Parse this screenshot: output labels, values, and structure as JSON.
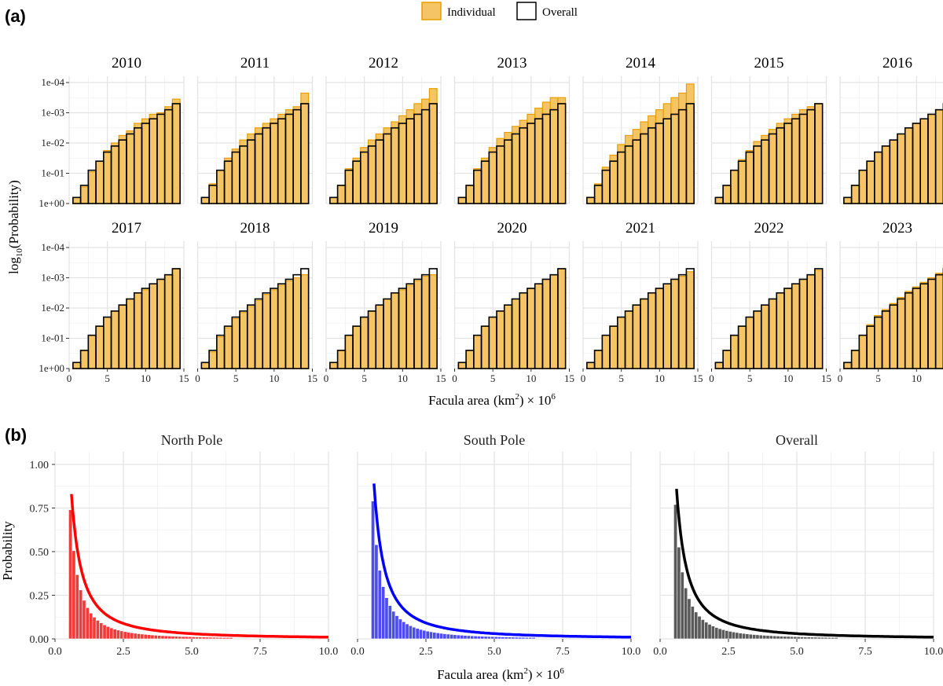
{
  "figure": {
    "panel_a_label": "(a)",
    "panel_b_label": "(b)"
  },
  "legend": {
    "individual_label": "Individual",
    "overall_label": "Overall",
    "individual_color": "#f5c465",
    "individual_stroke": "#e69f00",
    "overall_stroke": "#000000"
  },
  "chart_data": [
    {
      "type": "bar",
      "id": "panel-a",
      "title": "",
      "facets": [
        "2010",
        "2011",
        "2012",
        "2013",
        "2014",
        "2015",
        "2016",
        "2017",
        "2018",
        "2019",
        "2020",
        "2021",
        "2022",
        "2023"
      ],
      "xlabel_text": "Facula area",
      "xlabel_unit": "km",
      "xlabel_sup": "2",
      "xlabel_mult": "× 10",
      "xlabel_exp": "6",
      "ylabel_prefix": "log",
      "ylabel_sub": "10",
      "ylabel_paren": "(Probability)",
      "xlim": [
        0,
        15
      ],
      "xticks": [
        "0",
        "5",
        "10",
        "15"
      ],
      "xtick_values": [
        0,
        5,
        10,
        15
      ],
      "ylim": [
        0,
        4
      ],
      "yticks": [
        "1e+00",
        "1e-01",
        "1e-02",
        "1e-03",
        "1e-04"
      ],
      "ytick_values": [
        0,
        1,
        2,
        3,
        4
      ],
      "bin_width": 1,
      "bin_starts": [
        0.5,
        1.5,
        2.5,
        3.5,
        4.5,
        5.5,
        6.5,
        7.5,
        8.5,
        9.5,
        10.5,
        11.5,
        12.5,
        13.5
      ],
      "note": "heights are -log10(probability), growing to the right",
      "series": [
        {
          "name": "Overall",
          "values": [
            0.2,
            0.6,
            1.1,
            1.4,
            1.7,
            1.9,
            2.1,
            2.3,
            2.5,
            2.65,
            2.8,
            2.95,
            3.1,
            3.3
          ]
        },
        {
          "name": "Individual",
          "by_facet": {
            "2010": [
              0.2,
              0.55,
              1.05,
              1.4,
              1.75,
              2.0,
              2.25,
              2.4,
              2.65,
              2.8,
              2.95,
              3.0,
              3.2,
              3.45
            ],
            "2011": [
              0.2,
              0.65,
              1.1,
              1.5,
              1.8,
              2.1,
              2.3,
              2.5,
              2.65,
              2.8,
              2.95,
              3.1,
              3.2,
              3.65
            ],
            "2012": [
              0.2,
              0.6,
              1.15,
              1.5,
              1.85,
              2.1,
              2.3,
              2.5,
              2.7,
              2.9,
              3.1,
              3.3,
              3.45,
              3.8
            ],
            "2013": [
              0.2,
              0.6,
              1.15,
              1.5,
              1.85,
              2.15,
              2.35,
              2.55,
              2.75,
              2.95,
              3.15,
              3.35,
              3.5,
              3.5
            ],
            "2014": [
              0.2,
              0.65,
              1.2,
              1.6,
              1.95,
              2.25,
              2.45,
              2.7,
              2.9,
              3.1,
              3.3,
              3.5,
              3.65,
              3.95
            ],
            "2015": [
              0.2,
              0.6,
              1.1,
              1.45,
              1.75,
              2.05,
              2.25,
              2.45,
              2.65,
              2.8,
              2.95,
              3.1,
              3.2,
              3.3
            ],
            "2016": [
              0.2,
              0.6,
              1.1,
              1.4,
              1.7,
              1.9,
              2.1,
              2.3,
              2.5,
              2.65,
              2.8,
              2.95,
              3.1,
              3.3
            ],
            "2017": [
              0.2,
              0.6,
              1.1,
              1.4,
              1.7,
              1.9,
              2.1,
              2.3,
              2.5,
              2.6,
              2.8,
              2.95,
              3.1,
              3.3
            ],
            "2018": [
              0.2,
              0.55,
              1.05,
              1.35,
              1.65,
              1.85,
              2.05,
              2.25,
              2.45,
              2.6,
              2.75,
              2.9,
              3.0,
              3.1
            ],
            "2019": [
              0.2,
              0.6,
              1.1,
              1.4,
              1.7,
              1.9,
              2.1,
              2.3,
              2.5,
              2.6,
              2.75,
              2.9,
              3.05,
              3.1
            ],
            "2020": [
              0.2,
              0.6,
              1.1,
              1.4,
              1.7,
              1.9,
              2.1,
              2.3,
              2.5,
              2.65,
              2.8,
              2.95,
              3.1,
              3.3
            ],
            "2021": [
              0.2,
              0.6,
              1.1,
              1.4,
              1.7,
              1.9,
              2.1,
              2.3,
              2.5,
              2.65,
              2.8,
              2.95,
              3.05,
              3.2
            ],
            "2022": [
              0.2,
              0.6,
              1.1,
              1.4,
              1.7,
              1.9,
              2.1,
              2.3,
              2.5,
              2.65,
              2.8,
              2.95,
              3.1,
              3.25
            ],
            "2023": [
              0.2,
              0.6,
              1.1,
              1.45,
              1.75,
              1.95,
              2.15,
              2.35,
              2.55,
              2.7,
              2.85,
              3.0,
              3.15,
              3.4
            ]
          }
        }
      ]
    },
    {
      "type": "bar",
      "id": "panel-b",
      "title": "",
      "facets": [
        "North Pole",
        "South Pole",
        "Overall"
      ],
      "facet_colors": [
        "#ff0000",
        "#0000ff",
        "#000000"
      ],
      "facet_bar_fills": [
        "#f23a3a",
        "#4c4cf0",
        "#5a5a5a"
      ],
      "xlabel_text": "Facula area",
      "xlabel_unit": "km",
      "xlabel_sup": "2",
      "xlabel_mult": "× 10",
      "xlabel_exp": "6",
      "ylabel": "Probability",
      "xlim": [
        0,
        10
      ],
      "xticks": [
        "0.0",
        "2.5",
        "5.0",
        "7.5",
        "10.0"
      ],
      "xtick_values": [
        0,
        2.5,
        5,
        7.5,
        10
      ],
      "ylim": [
        0,
        1
      ],
      "yticks": [
        "0.00",
        "0.25",
        "0.50",
        "0.75",
        "1.00"
      ],
      "ytick_values": [
        0,
        0.25,
        0.5,
        0.75,
        1
      ],
      "bin_start": 0.5,
      "bin_width": 0.125,
      "bin_count": 48,
      "first_bar_values": [
        0.74,
        0.79,
        0.77
      ],
      "fit_curve": {
        "form": "y = a / x^b",
        "x_start": [
          0.6,
          0.6,
          0.6
        ],
        "y_start": [
          0.83,
          0.89,
          0.86
        ],
        "x_end": 10,
        "y_end": [
          0.01,
          0.01,
          0.01
        ]
      }
    }
  ]
}
